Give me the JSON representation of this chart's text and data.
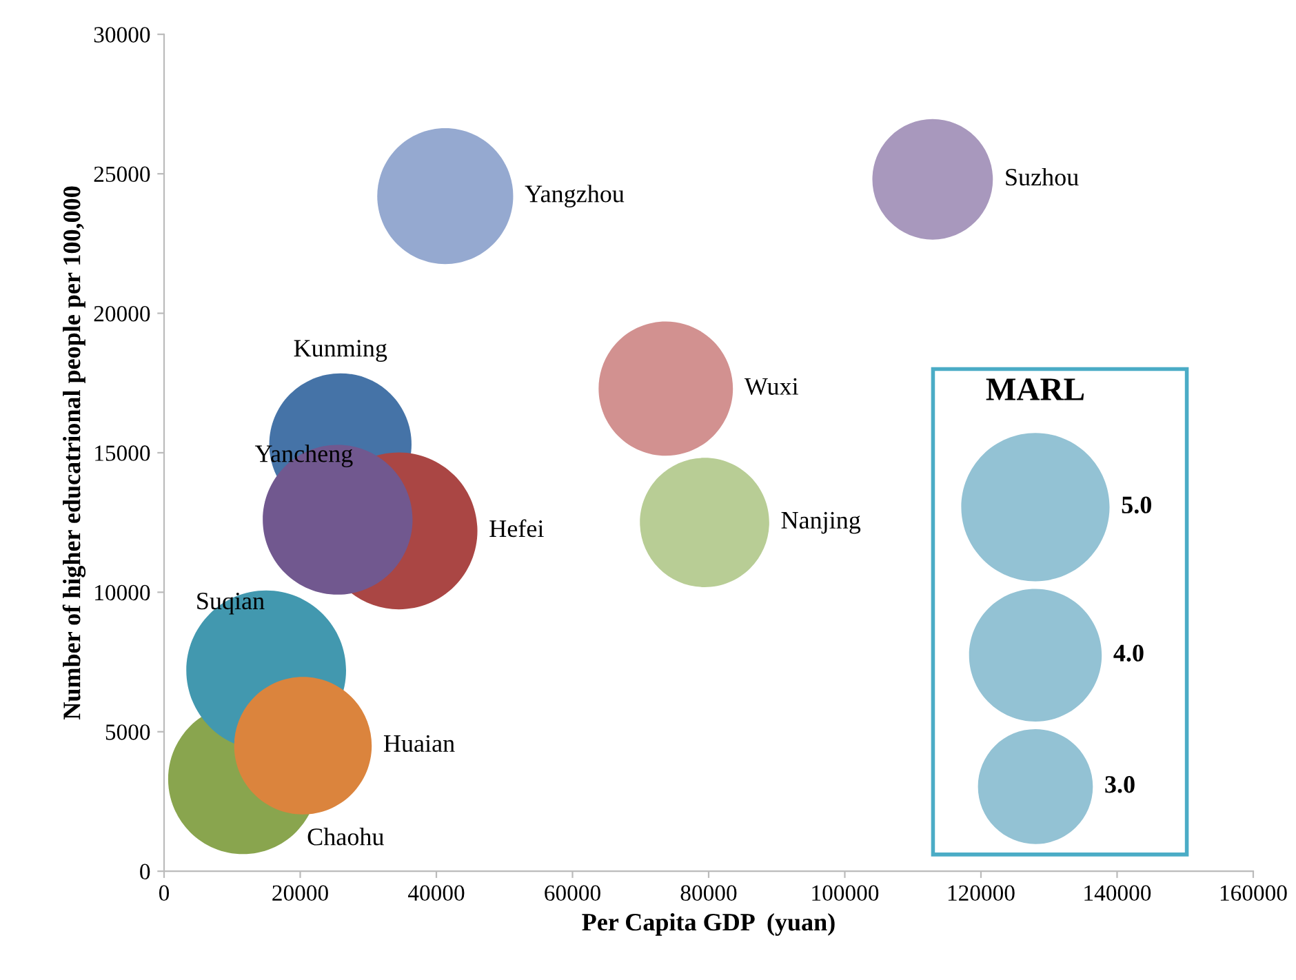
{
  "chart_data": {
    "type": "bubble",
    "xlabel": "Per Capita GDP  (yuan)",
    "ylabel": "Number of higher educatrional people per 100,000",
    "legend_title": "MARL",
    "size_legend": [
      {
        "value": 5,
        "label": "5.0"
      },
      {
        "value": 4,
        "label": "4.0"
      },
      {
        "value": 3,
        "label": "3.0"
      }
    ],
    "xlim": [
      0,
      160000
    ],
    "xticks": [
      0,
      20000,
      40000,
      60000,
      80000,
      100000,
      120000,
      140000,
      160000
    ],
    "ylim": [
      0,
      30000
    ],
    "yticks": [
      0,
      5000,
      10000,
      15000,
      20000,
      25000,
      30000
    ],
    "grid": false,
    "series": [
      {
        "name": "Chaohu",
        "color": "#89a54e",
        "x": [
          11600
        ],
        "values": [
          3300
        ],
        "sizes": [
          5.1
        ]
      },
      {
        "name": "Suqian",
        "color": "#4298af",
        "x": [
          15000
        ],
        "values": [
          7200
        ],
        "sizes": [
          5.8
        ]
      },
      {
        "name": "Kunming",
        "color": "#4573a7",
        "x": [
          25900
        ],
        "values": [
          15300
        ],
        "sizes": [
          4.6
        ]
      },
      {
        "name": "Hefei",
        "color": "#aa4644",
        "x": [
          34500
        ],
        "values": [
          12200
        ],
        "sizes": [
          5.6
        ]
      },
      {
        "name": "Yancheng",
        "color": "#71588f",
        "x": [
          25500
        ],
        "values": [
          12600
        ],
        "sizes": [
          5.1
        ]
      },
      {
        "name": "Huaian",
        "color": "#db843d",
        "x": [
          20400
        ],
        "values": [
          4500
        ],
        "sizes": [
          4.3
        ]
      },
      {
        "name": "Yangzhou",
        "color": "#95a9d0",
        "x": [
          41300
        ],
        "values": [
          24200
        ],
        "sizes": [
          4.2
        ]
      },
      {
        "name": "Wuxi",
        "color": "#d29190",
        "x": [
          73700
        ],
        "values": [
          17300
        ],
        "sizes": [
          4.1
        ]
      },
      {
        "name": "Nanjing",
        "color": "#b8cd95",
        "x": [
          79400
        ],
        "values": [
          12500
        ],
        "sizes": [
          3.8
        ]
      },
      {
        "name": "Suzhou",
        "color": "#a898bd",
        "x": [
          112900
        ],
        "values": [
          24800
        ],
        "sizes": [
          3.3
        ]
      }
    ]
  }
}
